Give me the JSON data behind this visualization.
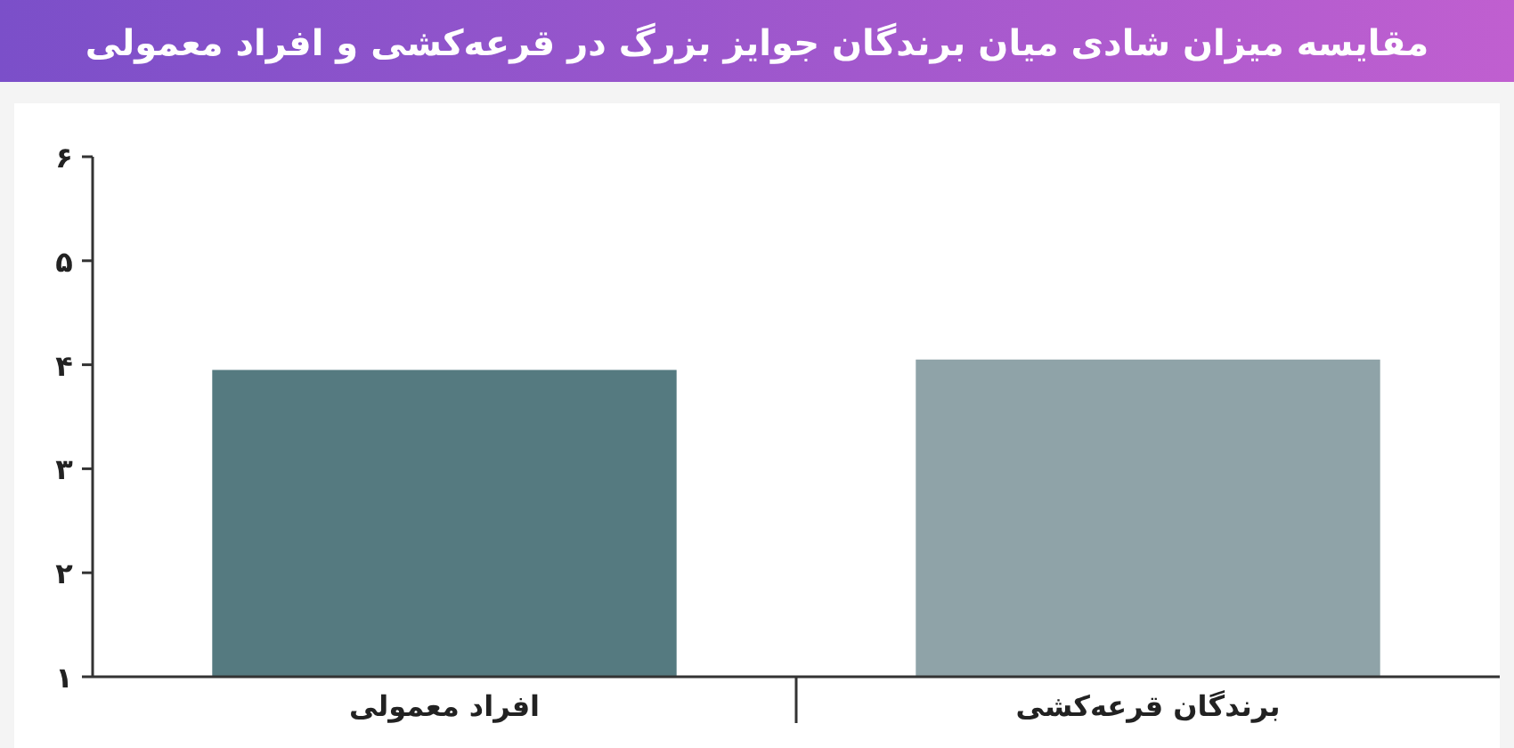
{
  "chart_data": {
    "type": "bar",
    "title": "مقایسه میزان شادی میان برندگان جوایز بزرگ در قرعه‌کشی و افراد معمولی",
    "categories": [
      "افراد معمولی",
      "برندگان قرعه‌کشی"
    ],
    "values": [
      3.95,
      4.05
    ],
    "colors": [
      "#557a80",
      "#8fa3a8"
    ],
    "ylim": [
      1,
      6
    ],
    "yticks": [
      {
        "value": 1,
        "label": "۱"
      },
      {
        "value": 2,
        "label": "۲"
      },
      {
        "value": 3,
        "label": "۳"
      },
      {
        "value": 4,
        "label": "۴"
      },
      {
        "value": 5,
        "label": "۵"
      },
      {
        "value": 6,
        "label": "۶"
      }
    ],
    "grid": false
  }
}
